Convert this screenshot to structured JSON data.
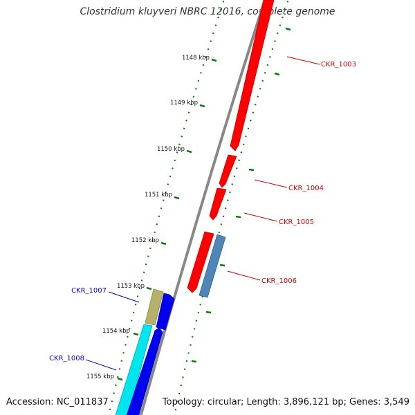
{
  "title": "Clostridium kluyveri NBRC 12016, complete genome",
  "footer": {
    "accession": "Accession: NC_011837",
    "topology": "Topology: circular; Length: 3,896,121 bp; Genes: 3,549"
  },
  "ticks": [
    "1148 kbp",
    "1149 kbp",
    "1150 kbp",
    "1151 kbp",
    "1152 kbp",
    "1153 kbp",
    "1154 kbp",
    "1155 kbp"
  ],
  "genes": [
    {
      "label": "CKR_1003",
      "color": "#cc0000"
    },
    {
      "label": "CKR_1004",
      "color": "#cc0000"
    },
    {
      "label": "CKR_1005",
      "color": "#cc0000"
    },
    {
      "label": "CKR_1006",
      "color": "#cc0000"
    },
    {
      "label": "CKR_1007",
      "color": "#0000cc"
    },
    {
      "label": "CKR_1008",
      "color": "#0000cc"
    }
  ],
  "colors": {
    "backbone": "#888888",
    "forward_cds": "#ff0000",
    "reverse_cds": "#0000ee",
    "cyan_cds": "#00e5ee",
    "olive_cds": "#b5b06a",
    "steel_cds": "#4f86b8",
    "ruler": "#117711"
  }
}
